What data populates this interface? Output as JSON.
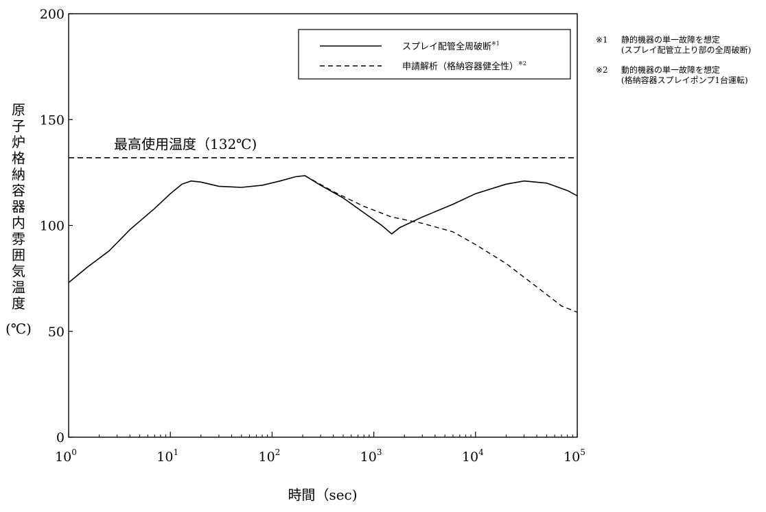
{
  "chart_data": {
    "type": "line",
    "xscale": "log",
    "xlim": [
      1,
      100000
    ],
    "ylim": [
      0,
      200
    ],
    "xlabel": "時間（sec)",
    "ylabel": "原子炉格納容器内雰囲気温度",
    "ylabel_unit": "(℃)",
    "x_ticks": [
      {
        "base": "10",
        "exp": "0"
      },
      {
        "base": "10",
        "exp": "1"
      },
      {
        "base": "10",
        "exp": "2"
      },
      {
        "base": "10",
        "exp": "3"
      },
      {
        "base": "10",
        "exp": "4"
      },
      {
        "base": "10",
        "exp": "5"
      }
    ],
    "y_ticks": [
      "0",
      "50",
      "100",
      "150",
      "200"
    ],
    "reference_line": {
      "label": "最高使用温度（132℃)",
      "y": 132
    },
    "series": [
      {
        "name": "スプレイ配管全周破断",
        "name_sup": "※1",
        "style": "solid",
        "points": [
          [
            1,
            73
          ],
          [
            1.5,
            80
          ],
          [
            2.5,
            88
          ],
          [
            4,
            98
          ],
          [
            7,
            108
          ],
          [
            10,
            115
          ],
          [
            13,
            119.5
          ],
          [
            16,
            121
          ],
          [
            20,
            120.5
          ],
          [
            30,
            118.5
          ],
          [
            50,
            118
          ],
          [
            80,
            119
          ],
          [
            120,
            121
          ],
          [
            170,
            123
          ],
          [
            210,
            123.5
          ],
          [
            300,
            119
          ],
          [
            500,
            113
          ],
          [
            800,
            106
          ],
          [
            1200,
            100
          ],
          [
            1500,
            96
          ],
          [
            1800,
            99
          ],
          [
            3000,
            104
          ],
          [
            6000,
            110
          ],
          [
            10000,
            115
          ],
          [
            20000,
            119.5
          ],
          [
            30000,
            121
          ],
          [
            50000,
            120
          ],
          [
            80000,
            116.5
          ],
          [
            100000,
            114
          ]
        ]
      },
      {
        "name": "申請解析（格納容器健全性）",
        "name_sup": "※2",
        "style": "dashed",
        "points": [
          [
            210,
            123.5
          ],
          [
            400,
            116
          ],
          [
            800,
            109
          ],
          [
            1500,
            104
          ],
          [
            3000,
            101
          ],
          [
            6000,
            97
          ],
          [
            10000,
            91
          ],
          [
            20000,
            82
          ],
          [
            40000,
            71
          ],
          [
            70000,
            62
          ],
          [
            100000,
            59
          ]
        ]
      }
    ]
  },
  "notes": [
    {
      "mark": "※1",
      "line1": "静的機器の単一故障を想定",
      "line2": "(スプレイ配管立上り部の全周破断)"
    },
    {
      "mark": "※2",
      "line1": "動的機器の単一故障を想定",
      "line2": "(格納容器スプレイポンプ1台運転)"
    }
  ]
}
